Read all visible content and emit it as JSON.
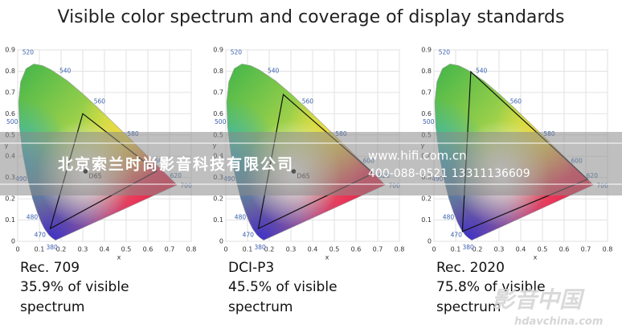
{
  "title": "Visible color spectrum and coverage of display standards",
  "chart_data": [
    {
      "type": "gamut",
      "name": "Rec. 709",
      "caption": "35.9% of visible",
      "caption_2": "spectrum",
      "xlabel": "x",
      "ylabel": "y",
      "xlim": [
        0,
        0.8
      ],
      "ylim": [
        0,
        0.9
      ],
      "xticks": [
        0,
        0.1,
        0.2,
        0.3,
        0.4,
        0.5,
        0.6,
        0.7,
        0.8
      ],
      "yticks": [
        0,
        0.1,
        0.2,
        0.3,
        0.4,
        0.5,
        0.6,
        0.7,
        0.8,
        0.9
      ],
      "grid": true,
      "gamut": {
        "x": [
          0.64,
          0.3,
          0.15
        ],
        "y": [
          0.33,
          0.6,
          0.06
        ],
        "color": "#111111"
      },
      "white_point": {
        "label": "D65",
        "x": 0.3127,
        "y": 0.329
      },
      "wavelengths": {
        "labels": [
          380,
          470,
          480,
          490,
          500,
          520,
          540,
          560,
          580,
          600,
          620,
          700
        ],
        "x": [
          0.1741,
          0.1241,
          0.0913,
          0.0454,
          0.0082,
          0.0743,
          0.2296,
          0.3731,
          0.5125,
          0.627,
          0.6915,
          0.7347
        ],
        "y": [
          0.005,
          0.0578,
          0.1327,
          0.295,
          0.5384,
          0.8338,
          0.7543,
          0.6245,
          0.4866,
          0.3725,
          0.3083,
          0.2653
        ]
      }
    },
    {
      "type": "gamut",
      "name": "DCI-P3",
      "caption": "45.5% of visible",
      "caption_2": "spectrum",
      "xlabel": "x",
      "ylabel": "y",
      "xlim": [
        0,
        0.8
      ],
      "ylim": [
        0,
        0.9
      ],
      "xticks": [
        0,
        0.1,
        0.2,
        0.3,
        0.4,
        0.5,
        0.6,
        0.7,
        0.8
      ],
      "yticks": [
        0,
        0.1,
        0.2,
        0.3,
        0.4,
        0.5,
        0.6,
        0.7,
        0.8,
        0.9
      ],
      "grid": true,
      "gamut": {
        "x": [
          0.68,
          0.265,
          0.15
        ],
        "y": [
          0.32,
          0.69,
          0.06
        ],
        "color": "#111111"
      },
      "white_point": {
        "label": "D65",
        "x": 0.3127,
        "y": 0.329
      },
      "wavelengths": {
        "labels": [
          380,
          470,
          480,
          490,
          500,
          520,
          540,
          560,
          580,
          600,
          620,
          700
        ],
        "x": [
          0.1741,
          0.1241,
          0.0913,
          0.0454,
          0.0082,
          0.0743,
          0.2296,
          0.3731,
          0.5125,
          0.627,
          0.6915,
          0.7347
        ],
        "y": [
          0.005,
          0.0578,
          0.1327,
          0.295,
          0.5384,
          0.8338,
          0.7543,
          0.6245,
          0.4866,
          0.3725,
          0.3083,
          0.2653
        ]
      }
    },
    {
      "type": "gamut",
      "name": "Rec. 2020",
      "caption": "75.8% of visible",
      "caption_2": "spectrum",
      "xlabel": "x",
      "ylabel": "y",
      "xlim": [
        0,
        0.8
      ],
      "ylim": [
        0,
        0.9
      ],
      "xticks": [
        0,
        0.1,
        0.2,
        0.3,
        0.4,
        0.5,
        0.6,
        0.7,
        0.8
      ],
      "yticks": [
        0,
        0.1,
        0.2,
        0.3,
        0.4,
        0.5,
        0.6,
        0.7,
        0.8,
        0.9
      ],
      "grid": true,
      "gamut": {
        "x": [
          0.708,
          0.17,
          0.131
        ],
        "y": [
          0.292,
          0.797,
          0.046
        ],
        "color": "#111111"
      },
      "wavelengths": {
        "labels": [
          380,
          470,
          480,
          490,
          500,
          520,
          540,
          560,
          580,
          600,
          620,
          700
        ],
        "x": [
          0.1741,
          0.1241,
          0.0913,
          0.0454,
          0.0082,
          0.0743,
          0.2296,
          0.3731,
          0.5125,
          0.627,
          0.6915,
          0.7347
        ],
        "y": [
          0.005,
          0.0578,
          0.1327,
          0.295,
          0.5384,
          0.8338,
          0.7543,
          0.6245,
          0.4866,
          0.3725,
          0.3083,
          0.2653
        ]
      }
    }
  ],
  "locus": {
    "x": [
      0.1741,
      0.1566,
      0.144,
      0.1241,
      0.1096,
      0.0913,
      0.0687,
      0.0454,
      0.0235,
      0.0082,
      0.0039,
      0.0139,
      0.0389,
      0.0743,
      0.1142,
      0.1547,
      0.2296,
      0.3016,
      0.3731,
      0.4441,
      0.5125,
      0.5752,
      0.627,
      0.6915,
      0.719,
      0.7347
    ],
    "y": [
      0.005,
      0.0177,
      0.0297,
      0.0578,
      0.0868,
      0.1327,
      0.2007,
      0.295,
      0.4127,
      0.5384,
      0.6548,
      0.7502,
      0.812,
      0.8338,
      0.8262,
      0.8059,
      0.7543,
      0.6923,
      0.6245,
      0.5547,
      0.4866,
      0.4242,
      0.3725,
      0.3083,
      0.2809,
      0.2653
    ]
  },
  "watermark": {
    "company": "北京索兰时尚影音科技有限公司",
    "url": "www.hifi.com.cn",
    "phone": "400-088-0521  13311136609",
    "logo": "影音中国",
    "logo_url": "hdavchina.com"
  }
}
